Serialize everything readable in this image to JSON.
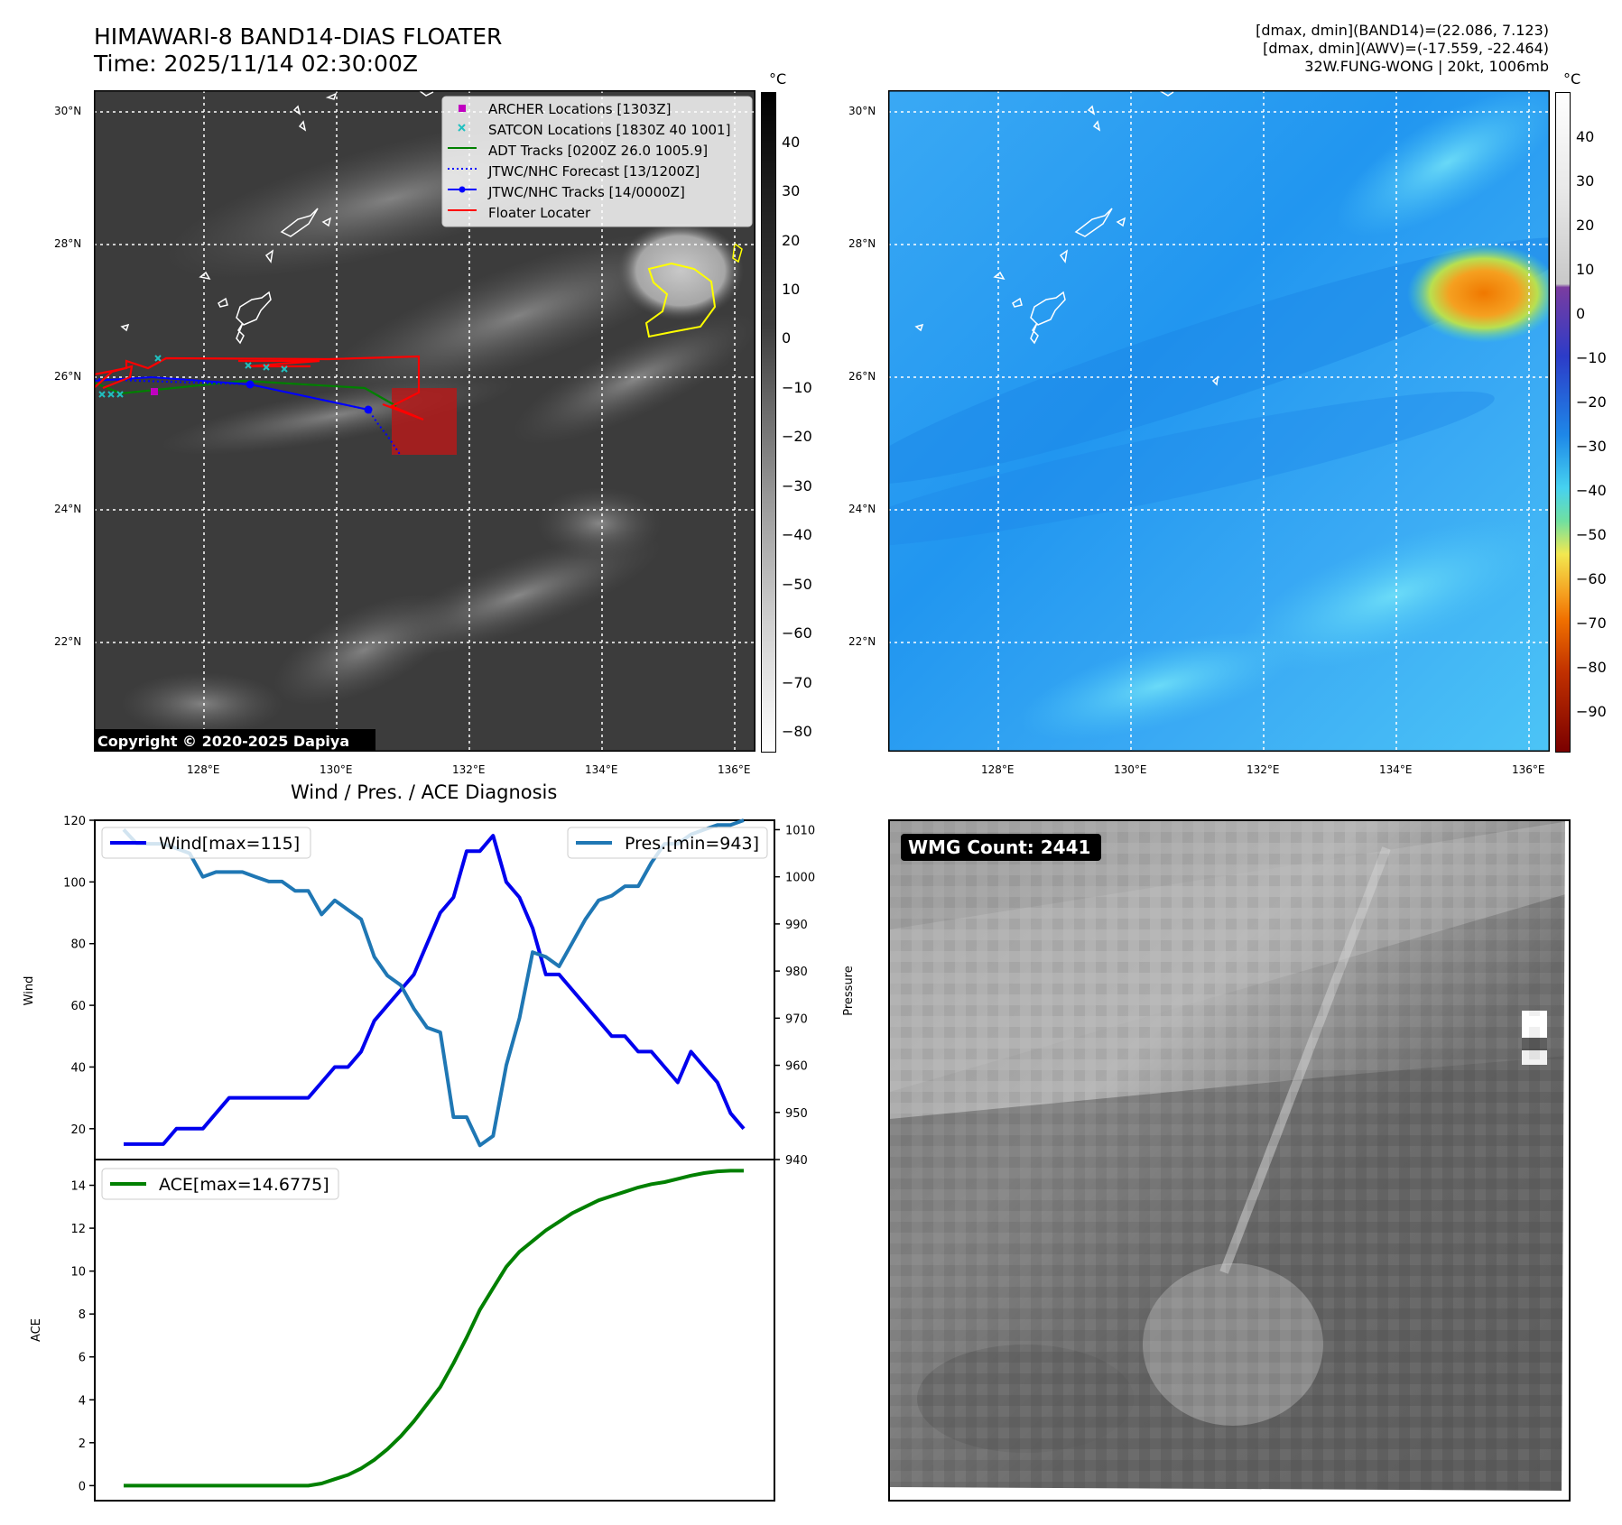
{
  "header": {
    "title_line1": "HIMAWARI-8 BAND14-DIAS FLOATER",
    "title_line2": "Time: 2025/11/14 02:30:00Z",
    "info_line1": "[dmax, dmin](BAND14)=(22.086, 7.123)",
    "info_line2": "[dmax, dmin](AWV)=(-17.559, -22.464)",
    "info_line3": "32W.FUNG-WONG | 20kt, 1006mb"
  },
  "map": {
    "lat_labels": [
      "30°N",
      "28°N",
      "26°N",
      "24°N",
      "22°N"
    ],
    "lon_labels": [
      "128°E",
      "130°E",
      "132°E",
      "134°E",
      "136°E"
    ],
    "copyright": "Copyright © 2020-2025 Dapiya",
    "legend": [
      {
        "label": "ARCHER Locations [1303Z]",
        "color": "#c000c0",
        "marker": "square"
      },
      {
        "label": "SATCON Locations [1830Z 40 1001]",
        "color": "#20c0c0",
        "marker": "x"
      },
      {
        "label": "ADT Tracks [0200Z 26.0 1005.9]",
        "color": "#008000",
        "marker": "line"
      },
      {
        "label": "JTWC/NHC Forecast [13/1200Z]",
        "color": "#0000ff",
        "marker": "dotted"
      },
      {
        "label": "JTWC/NHC Tracks [14/0000Z]",
        "color": "#0000ff",
        "marker": "dot-line"
      },
      {
        "label": "Floater Locater",
        "color": "#ff0000",
        "marker": "line"
      }
    ]
  },
  "colorbar_ir": {
    "unit": "°C",
    "ticks": [
      "40",
      "30",
      "20",
      "10",
      "0",
      "−10",
      "−20",
      "−30",
      "−40",
      "−50",
      "−60",
      "−70",
      "−80"
    ]
  },
  "colorbar_wv": {
    "unit": "°C",
    "ticks": [
      "40",
      "30",
      "20",
      "10",
      "0",
      "−10",
      "−20",
      "−30",
      "−40",
      "−50",
      "−60",
      "−70",
      "−80",
      "−90"
    ]
  },
  "diagnosis": {
    "title": "Wind / Pres. / ACE Diagnosis",
    "wind_ylabel": "Wind",
    "pres_ylabel": "Pressure",
    "ace_ylabel": "ACE",
    "wind_ticks": [
      "120",
      "100",
      "80",
      "60",
      "40",
      "20"
    ],
    "pres_ticks": [
      "1010",
      "1000",
      "990",
      "980",
      "970",
      "960",
      "950",
      "940"
    ],
    "ace_ticks": [
      "14",
      "12",
      "10",
      "8",
      "6",
      "4",
      "2",
      "0"
    ]
  },
  "wmg": {
    "label": "WMG Count: 2441"
  },
  "chart_data": [
    {
      "type": "line",
      "title": "Wind / Pres. / ACE Diagnosis",
      "x": [
        0,
        1,
        2,
        3,
        4,
        5,
        6,
        7,
        8,
        9,
        10,
        11,
        12,
        13,
        14,
        15,
        16,
        17,
        18,
        19,
        20,
        21,
        22,
        23,
        24,
        25,
        26,
        27,
        28,
        29,
        30,
        31,
        32,
        33,
        34,
        35,
        36,
        37,
        38,
        39,
        40,
        41,
        42,
        43,
        44,
        45,
        46,
        47
      ],
      "series": [
        {
          "name": "Wind[max=115]",
          "axis": "left",
          "color": "#0000ee",
          "values": [
            15,
            15,
            15,
            15,
            20,
            20,
            20,
            25,
            30,
            30,
            30,
            30,
            30,
            30,
            30,
            35,
            40,
            40,
            45,
            55,
            60,
            65,
            70,
            80,
            90,
            95,
            110,
            110,
            115,
            100,
            95,
            85,
            70,
            70,
            65,
            60,
            55,
            50,
            50,
            45,
            45,
            40,
            35,
            45,
            40,
            35,
            25,
            20
          ]
        },
        {
          "name": "Pres.[min=943]",
          "axis": "right",
          "color": "#1f77b4",
          "values": [
            1010,
            1007,
            1007,
            1007,
            1006,
            1005,
            1000,
            1001,
            1001,
            1001,
            1000,
            999,
            999,
            997,
            997,
            992,
            995,
            993,
            991,
            983,
            979,
            977,
            972,
            968,
            967,
            949,
            949,
            943,
            945,
            960,
            970,
            984,
            983,
            981,
            986,
            991,
            995,
            996,
            998,
            998,
            1003,
            1007,
            1007,
            1009,
            1010,
            1011,
            1011,
            1012
          ]
        },
        {
          "name": "ACE[max=14.6775]",
          "axis": "ace",
          "color": "#008000",
          "values": [
            0,
            0,
            0,
            0,
            0,
            0,
            0,
            0,
            0,
            0,
            0,
            0,
            0,
            0,
            0,
            0.1,
            0.3,
            0.5,
            0.8,
            1.2,
            1.7,
            2.3,
            3.0,
            3.8,
            4.6,
            5.7,
            6.9,
            8.2,
            9.2,
            10.2,
            10.9,
            11.4,
            11.9,
            12.3,
            12.7,
            13.0,
            13.3,
            13.5,
            13.7,
            13.9,
            14.05,
            14.15,
            14.3,
            14.45,
            14.57,
            14.65,
            14.68,
            14.68
          ]
        }
      ],
      "wind_ylim": [
        10,
        120
      ],
      "pres_ylim": [
        940,
        1012
      ],
      "ace_ylim": [
        -0.7,
        15.2
      ],
      "legend": [
        "Wind[max=115]",
        "Pres.[min=943]",
        "ACE[max=14.6775]"
      ]
    }
  ]
}
